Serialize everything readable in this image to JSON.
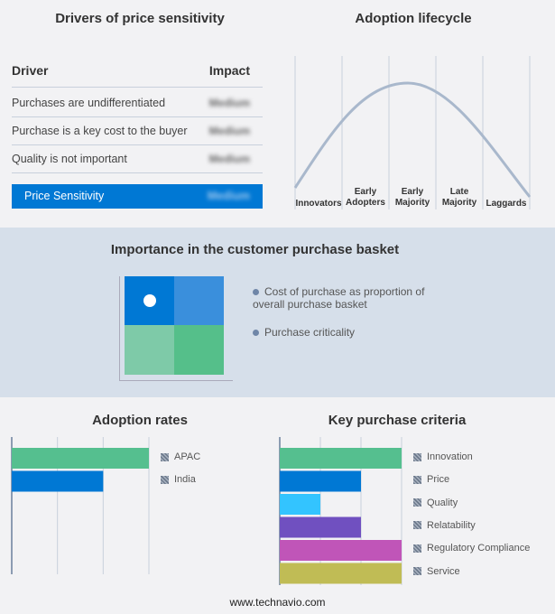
{
  "drivers": {
    "title": "Drivers of price sensitivity",
    "col_driver": "Driver",
    "col_impact": "Impact",
    "rows": [
      {
        "driver": "Purchases are undifferentiated",
        "impact": "Medium"
      },
      {
        "driver": "Purchase is a key cost to the buyer",
        "impact": "Medium"
      },
      {
        "driver": "Quality is not important",
        "impact": "Medium"
      }
    ],
    "summary": {
      "label": "Price Sensitivity",
      "impact": "Medium"
    },
    "accent": "#0078d4"
  },
  "lifecycle": {
    "title": "Adoption lifecycle",
    "stages": [
      "Innovators",
      "Early Adopters",
      "Early Majority",
      "Late Majority",
      "Laggards"
    ]
  },
  "basket": {
    "title": "Importance in the customer purchase basket",
    "legend": [
      "Cost of purchase as proportion of overall purchase basket",
      "Purchase criticality"
    ]
  },
  "chart_data": [
    {
      "type": "bar",
      "title": "Adoption rates",
      "categories": [
        "APAC",
        "India"
      ],
      "values": [
        3,
        2
      ],
      "xlim": [
        0,
        3
      ],
      "colors": [
        "#55bf8f",
        "#0078d4"
      ],
      "grid": true,
      "legend": "right"
    },
    {
      "type": "bar",
      "title": "Key purchase criteria",
      "categories": [
        "Innovation",
        "Price",
        "Quality",
        "Relatability",
        "Regulatory Compliance",
        "Service"
      ],
      "values": [
        3,
        2,
        1,
        2,
        3,
        3
      ],
      "xlim": [
        0,
        3
      ],
      "colors": [
        "#55bf8f",
        "#0078d4",
        "#33c4ff",
        "#7050c0",
        "#c055b8",
        "#c0bc55"
      ],
      "grid": true,
      "legend": "right"
    }
  ],
  "footer": "www.technavio.com"
}
